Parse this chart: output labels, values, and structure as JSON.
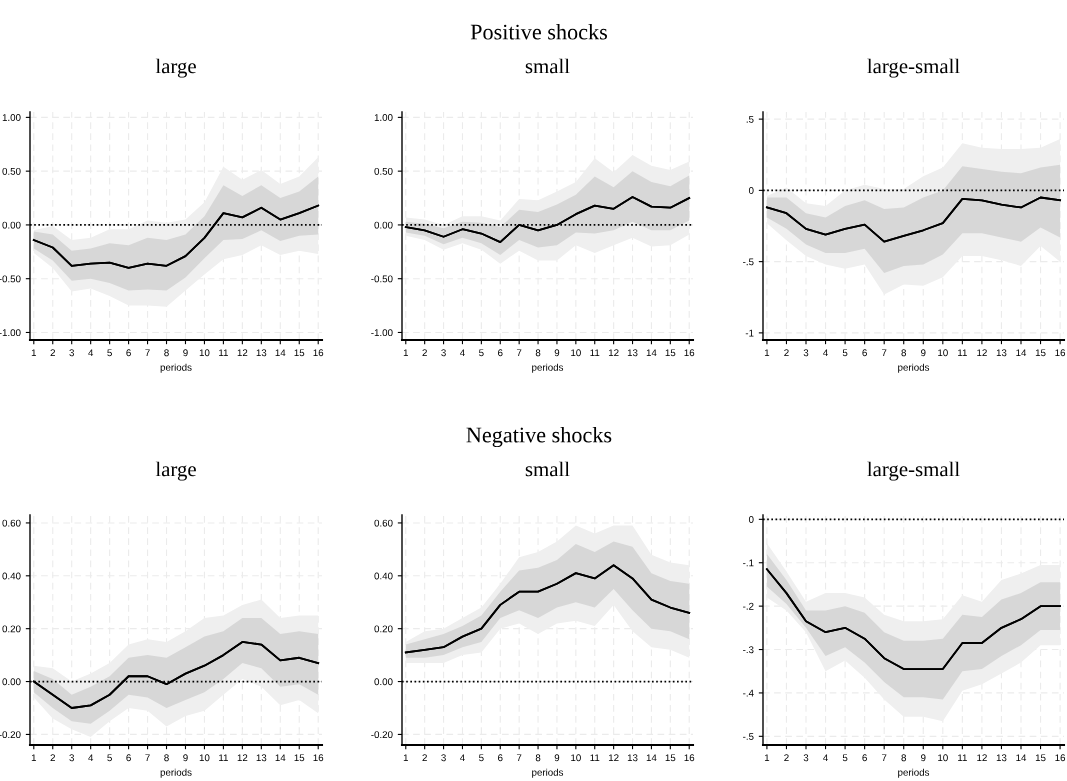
{
  "chart_data": [
    {
      "type": "line",
      "title": "large",
      "xlabel": "periods",
      "x": [
        1,
        2,
        3,
        4,
        5,
        6,
        7,
        8,
        9,
        10,
        11,
        12,
        13,
        14,
        15,
        16
      ],
      "xlim": [
        0.8,
        16.2
      ],
      "xticks": [
        1,
        2,
        3,
        4,
        5,
        6,
        7,
        8,
        9,
        10,
        11,
        12,
        13,
        14,
        15,
        16
      ],
      "ylim": [
        -1.07,
        1.05
      ],
      "yticks": [
        {
          "value": -1,
          "label": "-1.00"
        },
        {
          "value": -0.5,
          "label": "-0.50"
        },
        {
          "value": 0,
          "label": "0.00"
        },
        {
          "value": 0.5,
          "label": "0.50"
        },
        {
          "value": 1,
          "label": "1.00"
        }
      ],
      "grid": true,
      "ref_lines": [
        {
          "axis": "y",
          "value": 0,
          "line_style": "dotted",
          "color": "#000000"
        }
      ],
      "series": [
        {
          "color": "#000000",
          "values": [
            -0.14,
            -0.21,
            -0.38,
            -0.36,
            -0.35,
            -0.4,
            -0.36,
            -0.38,
            -0.29,
            -0.12,
            0.11,
            0.07,
            0.16,
            0.05,
            0.11,
            0.18
          ],
          "lower": [
            -0.26,
            -0.4,
            -0.62,
            -0.59,
            -0.66,
            -0.75,
            -0.75,
            -0.76,
            -0.61,
            -0.46,
            -0.32,
            -0.28,
            -0.19,
            -0.28,
            -0.24,
            -0.27
          ],
          "upper": [
            -0.05,
            -0.01,
            -0.14,
            -0.12,
            -0.04,
            -0.04,
            0.04,
            0.02,
            0.05,
            0.21,
            0.54,
            0.42,
            0.51,
            0.38,
            0.45,
            0.63
          ]
        },
        {
          "color": "#000000",
          "values": [
            -0.14,
            -0.21,
            -0.38,
            -0.36,
            -0.35,
            -0.4,
            -0.36,
            -0.38,
            -0.29,
            -0.12,
            0.11,
            0.07,
            0.16,
            0.05,
            0.11,
            0.18
          ],
          "lower": [
            -0.22,
            -0.33,
            -0.52,
            -0.5,
            -0.54,
            -0.61,
            -0.6,
            -0.61,
            -0.49,
            -0.31,
            -0.14,
            -0.13,
            -0.05,
            -0.15,
            -0.1,
            -0.09
          ],
          "upper": [
            -0.06,
            -0.09,
            -0.24,
            -0.22,
            -0.17,
            -0.19,
            -0.12,
            -0.14,
            -0.09,
            0.08,
            0.37,
            0.27,
            0.37,
            0.25,
            0.31,
            0.45
          ]
        }
      ]
    },
    {
      "type": "line",
      "subtitle": "Positive shocks",
      "title": "small",
      "xlabel": "periods",
      "x": [
        1,
        2,
        3,
        4,
        5,
        6,
        7,
        8,
        9,
        10,
        11,
        12,
        13,
        14,
        15,
        16
      ],
      "xlim": [
        0.8,
        16.2
      ],
      "xticks": [
        1,
        2,
        3,
        4,
        5,
        6,
        7,
        8,
        9,
        10,
        11,
        12,
        13,
        14,
        15,
        16
      ],
      "ylim": [
        -1.07,
        1.05
      ],
      "yticks": [
        {
          "value": -1,
          "label": "-1.00"
        },
        {
          "value": -0.5,
          "label": "-0.50"
        },
        {
          "value": 0,
          "label": "0.00"
        },
        {
          "value": 0.5,
          "label": "0.50"
        },
        {
          "value": 1,
          "label": "1.00"
        }
      ],
      "grid": true,
      "ref_lines": [
        {
          "axis": "y",
          "value": 0,
          "line_style": "dotted",
          "color": "#000000"
        }
      ],
      "series": [
        {
          "color": "#000000",
          "values": [
            -0.02,
            -0.05,
            -0.11,
            -0.04,
            -0.08,
            -0.16,
            0.0,
            -0.05,
            0.0,
            0.1,
            0.18,
            0.15,
            0.26,
            0.17,
            0.16,
            0.25
          ],
          "lower": [
            -0.1,
            -0.14,
            -0.23,
            -0.17,
            -0.23,
            -0.36,
            -0.24,
            -0.33,
            -0.33,
            -0.19,
            -0.26,
            -0.19,
            -0.12,
            -0.2,
            -0.19,
            -0.09
          ],
          "upper": [
            0.07,
            0.05,
            0.0,
            0.08,
            0.08,
            0.04,
            0.24,
            0.23,
            0.31,
            0.4,
            0.62,
            0.49,
            0.65,
            0.55,
            0.51,
            0.59
          ]
        },
        {
          "color": "#000000",
          "values": [
            -0.02,
            -0.05,
            -0.11,
            -0.04,
            -0.08,
            -0.16,
            0.0,
            -0.05,
            0.0,
            0.1,
            0.18,
            0.15,
            0.26,
            0.17,
            0.16,
            0.25
          ],
          "lower": [
            -0.07,
            -0.1,
            -0.18,
            -0.12,
            -0.17,
            -0.28,
            -0.14,
            -0.21,
            -0.19,
            -0.07,
            -0.08,
            -0.05,
            0.03,
            -0.05,
            -0.05,
            0.04
          ],
          "upper": [
            0.03,
            0.01,
            -0.03,
            0.03,
            0.02,
            -0.02,
            0.14,
            0.12,
            0.19,
            0.28,
            0.45,
            0.35,
            0.5,
            0.4,
            0.36,
            0.46
          ]
        }
      ]
    },
    {
      "type": "line",
      "title": "large-small",
      "xlabel": "periods",
      "x": [
        1,
        2,
        3,
        4,
        5,
        6,
        7,
        8,
        9,
        10,
        11,
        12,
        13,
        14,
        15,
        16
      ],
      "xlim": [
        0.8,
        16.2
      ],
      "xticks": [
        1,
        2,
        3,
        4,
        5,
        6,
        7,
        8,
        9,
        10,
        11,
        12,
        13,
        14,
        15,
        16
      ],
      "ylim": [
        -1.05,
        0.55
      ],
      "yticks": [
        {
          "value": -1,
          "label": "-1"
        },
        {
          "value": -0.5,
          "label": "-.5"
        },
        0,
        {
          "value": 0.5,
          "label": ".5"
        }
      ],
      "grid": true,
      "ref_lines": [
        {
          "axis": "y",
          "value": 0,
          "line_style": "dotted",
          "color": "#000000"
        }
      ],
      "series": [
        {
          "color": "#000000",
          "values": [
            -0.12,
            -0.16,
            -0.27,
            -0.31,
            -0.27,
            -0.24,
            -0.36,
            -0.32,
            -0.28,
            -0.23,
            -0.06,
            -0.07,
            -0.1,
            -0.12,
            -0.05,
            -0.07
          ],
          "lower": [
            -0.23,
            -0.35,
            -0.46,
            -0.52,
            -0.55,
            -0.52,
            -0.73,
            -0.66,
            -0.67,
            -0.61,
            -0.46,
            -0.46,
            -0.49,
            -0.53,
            -0.39,
            -0.5
          ],
          "upper": [
            -0.04,
            0.02,
            -0.09,
            -0.11,
            0.0,
            0.04,
            0.01,
            0.01,
            0.1,
            0.16,
            0.33,
            0.3,
            0.29,
            0.29,
            0.3,
            0.36
          ]
        },
        {
          "color": "#000000",
          "values": [
            -0.12,
            -0.16,
            -0.27,
            -0.31,
            -0.27,
            -0.24,
            -0.36,
            -0.32,
            -0.28,
            -0.23,
            -0.06,
            -0.07,
            -0.1,
            -0.12,
            -0.05,
            -0.07
          ],
          "lower": [
            -0.19,
            -0.27,
            -0.38,
            -0.44,
            -0.44,
            -0.41,
            -0.58,
            -0.53,
            -0.52,
            -0.45,
            -0.3,
            -0.3,
            -0.33,
            -0.36,
            -0.26,
            -0.33
          ],
          "upper": [
            -0.05,
            -0.05,
            -0.16,
            -0.19,
            -0.11,
            -0.07,
            -0.13,
            -0.12,
            -0.05,
            0.0,
            0.17,
            0.15,
            0.13,
            0.12,
            0.16,
            0.18
          ]
        }
      ]
    },
    {
      "type": "line",
      "title": "large",
      "xlabel": "periods",
      "x": [
        1,
        2,
        3,
        4,
        5,
        6,
        7,
        8,
        9,
        10,
        11,
        12,
        13,
        14,
        15,
        16
      ],
      "xlim": [
        0.8,
        16.2
      ],
      "xticks": [
        1,
        2,
        3,
        4,
        5,
        6,
        7,
        8,
        9,
        10,
        11,
        12,
        13,
        14,
        15,
        16
      ],
      "ylim": [
        -0.24,
        0.63
      ],
      "yticks": [
        {
          "value": -0.2,
          "label": "-0.20"
        },
        {
          "value": 0,
          "label": "0.00"
        },
        {
          "value": 0.2,
          "label": "0.20"
        },
        {
          "value": 0.4,
          "label": "0.40"
        },
        {
          "value": 0.6,
          "label": "0.60"
        }
      ],
      "grid": true,
      "ref_lines": [
        {
          "axis": "y",
          "value": 0,
          "line_style": "dotted",
          "color": "#000000"
        }
      ],
      "series": [
        {
          "color": "#000000",
          "values": [
            0.0,
            -0.05,
            -0.1,
            -0.09,
            -0.05,
            0.02,
            0.02,
            -0.01,
            0.03,
            0.06,
            0.1,
            0.15,
            0.14,
            0.08,
            0.09,
            0.07
          ],
          "lower": [
            -0.06,
            -0.14,
            -0.18,
            -0.21,
            -0.15,
            -0.1,
            -0.11,
            -0.17,
            -0.13,
            -0.11,
            -0.05,
            0.01,
            -0.02,
            -0.09,
            -0.07,
            -0.12
          ],
          "upper": [
            0.06,
            0.05,
            0.0,
            0.03,
            0.07,
            0.14,
            0.16,
            0.15,
            0.19,
            0.24,
            0.25,
            0.29,
            0.31,
            0.24,
            0.25,
            0.25
          ]
        },
        {
          "color": "#000000",
          "values": [
            0.0,
            -0.05,
            -0.1,
            -0.09,
            -0.05,
            0.02,
            0.02,
            -0.01,
            0.03,
            0.06,
            0.1,
            0.15,
            0.14,
            0.08,
            0.09,
            0.07
          ],
          "lower": [
            -0.04,
            -0.1,
            -0.15,
            -0.16,
            -0.11,
            -0.05,
            -0.06,
            -0.1,
            -0.07,
            -0.04,
            0.01,
            0.07,
            0.05,
            -0.02,
            -0.01,
            -0.05
          ],
          "upper": [
            0.04,
            0.01,
            -0.05,
            -0.02,
            0.02,
            0.09,
            0.1,
            0.09,
            0.13,
            0.17,
            0.19,
            0.24,
            0.24,
            0.18,
            0.19,
            0.18
          ]
        }
      ]
    },
    {
      "type": "line",
      "subtitle": "Negative shocks",
      "title": "small",
      "xlabel": "periods",
      "x": [
        1,
        2,
        3,
        4,
        5,
        6,
        7,
        8,
        9,
        10,
        11,
        12,
        13,
        14,
        15,
        16
      ],
      "xlim": [
        0.8,
        16.2
      ],
      "xticks": [
        1,
        2,
        3,
        4,
        5,
        6,
        7,
        8,
        9,
        10,
        11,
        12,
        13,
        14,
        15,
        16
      ],
      "ylim": [
        -0.24,
        0.63
      ],
      "yticks": [
        {
          "value": -0.2,
          "label": "-0.20"
        },
        {
          "value": 0,
          "label": "0.00"
        },
        {
          "value": 0.2,
          "label": "0.20"
        },
        {
          "value": 0.4,
          "label": "0.40"
        },
        {
          "value": 0.6,
          "label": "0.60"
        }
      ],
      "grid": true,
      "ref_lines": [
        {
          "axis": "y",
          "value": 0,
          "line_style": "dotted",
          "color": "#000000"
        }
      ],
      "series": [
        {
          "color": "#000000",
          "values": [
            0.11,
            0.12,
            0.13,
            0.17,
            0.2,
            0.29,
            0.34,
            0.34,
            0.37,
            0.41,
            0.39,
            0.44,
            0.39,
            0.31,
            0.28,
            0.26
          ],
          "lower": [
            0.07,
            0.07,
            0.07,
            0.1,
            0.11,
            0.2,
            0.22,
            0.18,
            0.22,
            0.23,
            0.21,
            0.29,
            0.19,
            0.13,
            0.12,
            0.09
          ],
          "upper": [
            0.15,
            0.19,
            0.2,
            0.24,
            0.28,
            0.37,
            0.47,
            0.49,
            0.53,
            0.59,
            0.56,
            0.59,
            0.59,
            0.48,
            0.45,
            0.44
          ]
        },
        {
          "color": "#000000",
          "values": [
            0.11,
            0.12,
            0.13,
            0.17,
            0.2,
            0.29,
            0.34,
            0.34,
            0.37,
            0.41,
            0.39,
            0.44,
            0.39,
            0.31,
            0.28,
            0.26
          ],
          "lower": [
            0.09,
            0.09,
            0.1,
            0.13,
            0.15,
            0.24,
            0.27,
            0.24,
            0.28,
            0.3,
            0.28,
            0.35,
            0.27,
            0.2,
            0.19,
            0.16
          ],
          "upper": [
            0.14,
            0.16,
            0.18,
            0.21,
            0.25,
            0.34,
            0.42,
            0.43,
            0.46,
            0.52,
            0.49,
            0.53,
            0.51,
            0.41,
            0.38,
            0.37
          ]
        }
      ]
    },
    {
      "type": "line",
      "title": "large-small",
      "xlabel": "periods",
      "x": [
        1,
        2,
        3,
        4,
        5,
        6,
        7,
        8,
        9,
        10,
        11,
        12,
        13,
        14,
        15,
        16
      ],
      "xlim": [
        0.8,
        16.2
      ],
      "xticks": [
        1,
        2,
        3,
        4,
        5,
        6,
        7,
        8,
        9,
        10,
        11,
        12,
        13,
        14,
        15,
        16
      ],
      "ylim": [
        -0.52,
        0.01
      ],
      "yticks": [
        {
          "value": -0.5,
          "label": "-.5"
        },
        {
          "value": -0.4,
          "label": "-.4"
        },
        {
          "value": -0.3,
          "label": "-.3"
        },
        {
          "value": -0.2,
          "label": "-.2"
        },
        {
          "value": -0.1,
          "label": "-.1"
        },
        0
      ],
      "grid": true,
      "ref_lines": [
        {
          "axis": "y",
          "value": 0,
          "line_style": "dotted",
          "color": "#000000"
        }
      ],
      "series": [
        {
          "color": "#000000",
          "values": [
            -0.115,
            -0.17,
            -0.235,
            -0.26,
            -0.25,
            -0.275,
            -0.32,
            -0.345,
            -0.345,
            -0.345,
            -0.285,
            -0.285,
            -0.25,
            -0.23,
            -0.2,
            -0.2
          ],
          "lower": [
            -0.18,
            -0.21,
            -0.26,
            -0.35,
            -0.325,
            -0.365,
            -0.415,
            -0.455,
            -0.455,
            -0.465,
            -0.395,
            -0.38,
            -0.355,
            -0.33,
            -0.29,
            -0.29
          ],
          "upper": [
            -0.055,
            -0.12,
            -0.19,
            -0.17,
            -0.17,
            -0.18,
            -0.22,
            -0.235,
            -0.235,
            -0.23,
            -0.175,
            -0.19,
            -0.14,
            -0.125,
            -0.105,
            -0.105
          ]
        },
        {
          "color": "#000000",
          "values": [
            -0.115,
            -0.17,
            -0.235,
            -0.26,
            -0.25,
            -0.275,
            -0.32,
            -0.345,
            -0.345,
            -0.345,
            -0.285,
            -0.285,
            -0.25,
            -0.23,
            -0.2,
            -0.2
          ],
          "lower": [
            -0.155,
            -0.195,
            -0.25,
            -0.315,
            -0.295,
            -0.33,
            -0.375,
            -0.41,
            -0.41,
            -0.415,
            -0.35,
            -0.345,
            -0.315,
            -0.29,
            -0.255,
            -0.255
          ],
          "upper": [
            -0.08,
            -0.14,
            -0.21,
            -0.21,
            -0.2,
            -0.215,
            -0.26,
            -0.28,
            -0.28,
            -0.275,
            -0.22,
            -0.225,
            -0.185,
            -0.17,
            -0.145,
            -0.145
          ]
        }
      ]
    }
  ]
}
